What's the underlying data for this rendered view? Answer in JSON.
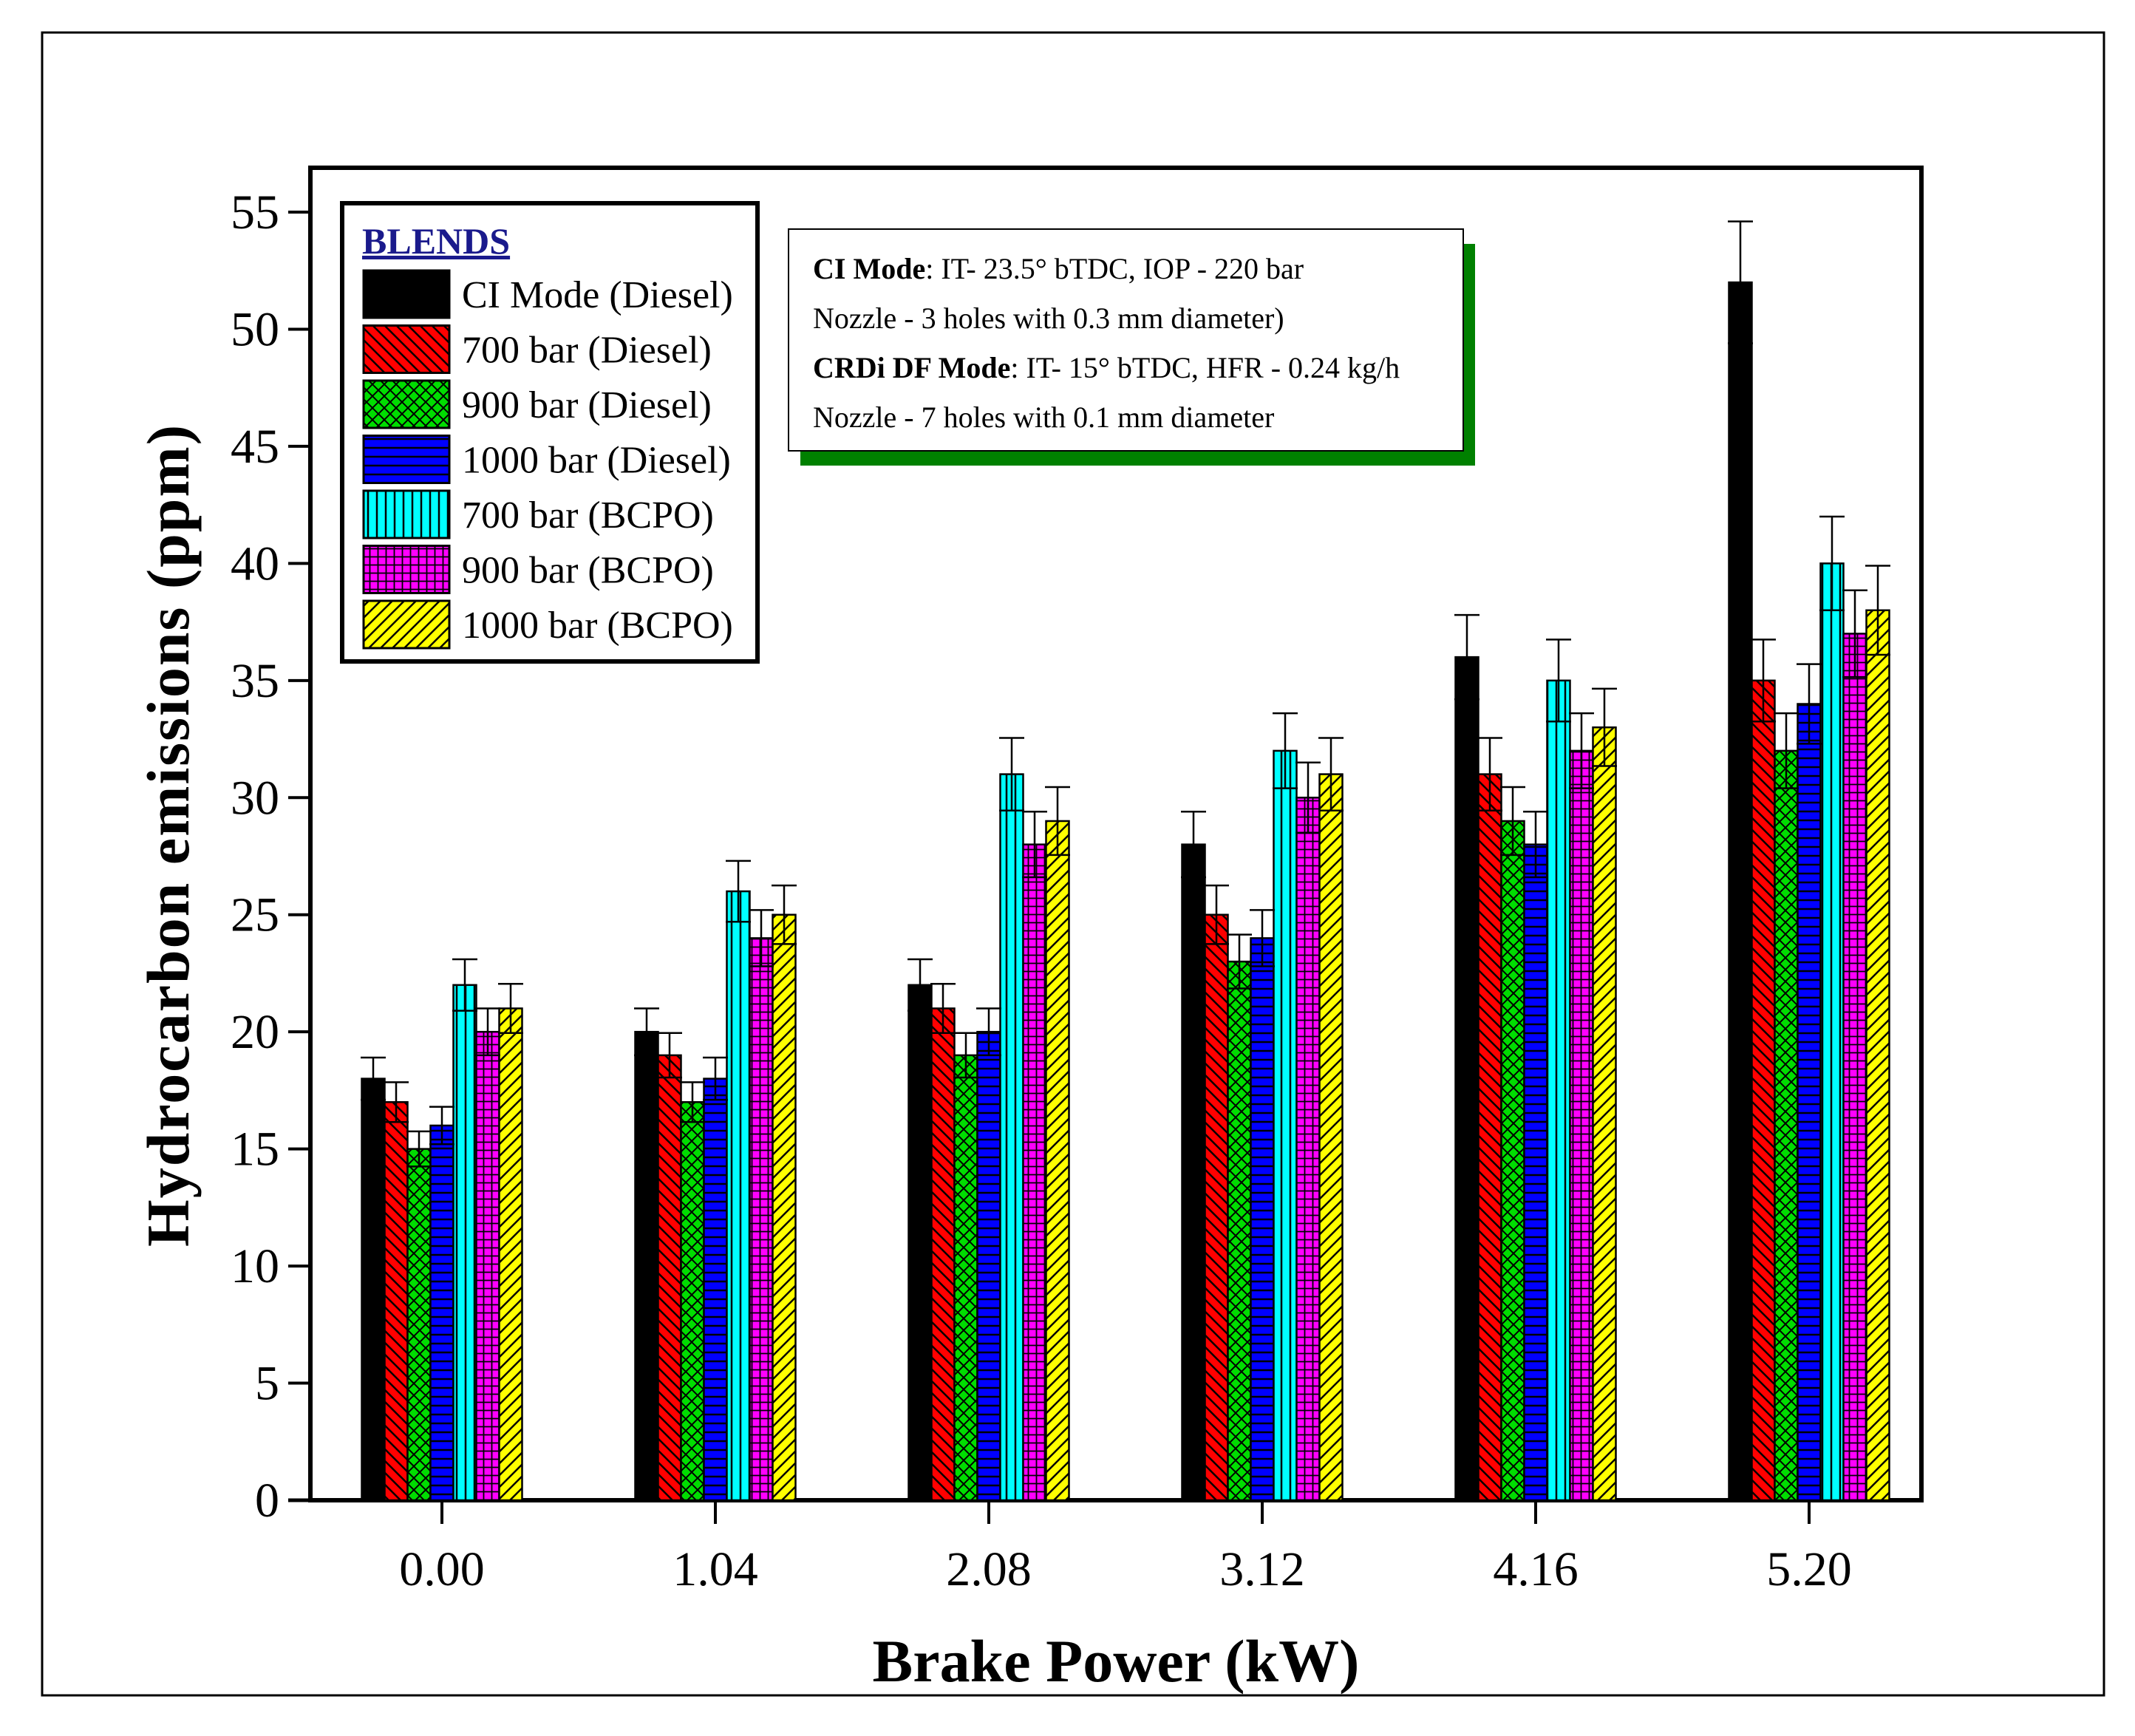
{
  "chart_data": {
    "type": "bar",
    "xlabel": "Brake Power (kW)",
    "ylabel": "Hydrocarbon emissions (ppm)",
    "categories": [
      "0.00",
      "1.04",
      "2.08",
      "3.12",
      "4.16",
      "5.20"
    ],
    "ylim": [
      0,
      55
    ],
    "yticks": [
      0,
      5,
      10,
      15,
      20,
      25,
      30,
      35,
      40,
      45,
      50,
      55
    ],
    "grid": false,
    "legend": {
      "title": "BLENDS",
      "placement": "top-left"
    },
    "series": [
      {
        "name": "CI Mode (Diesel)",
        "color": "#000000",
        "pattern": "solid",
        "values": [
          18,
          20,
          22,
          28,
          36,
          52
        ],
        "errors": [
          0.9,
          1.0,
          1.1,
          1.4,
          1.8,
          2.6
        ]
      },
      {
        "name": "700 bar (Diesel)",
        "color": "#ff0000",
        "pattern": "diagonal-down",
        "values": [
          17,
          19,
          21,
          25,
          31,
          35
        ],
        "errors": [
          0.85,
          0.95,
          1.05,
          1.25,
          1.55,
          1.75
        ]
      },
      {
        "name": "900 bar (Diesel)",
        "color": "#00dd00",
        "pattern": "crosshatch-diagonal",
        "values": [
          15,
          17,
          19,
          23,
          29,
          32
        ],
        "errors": [
          0.75,
          0.85,
          0.95,
          1.15,
          1.45,
          1.6
        ]
      },
      {
        "name": "1000 bar (Diesel)",
        "color": "#0000ff",
        "pattern": "horizontal",
        "values": [
          16,
          18,
          20,
          24,
          28,
          34
        ],
        "errors": [
          0.8,
          0.9,
          1.0,
          1.2,
          1.4,
          1.7
        ]
      },
      {
        "name": "700 bar (BCPO)",
        "color": "#00ffff",
        "pattern": "vertical",
        "values": [
          22,
          26,
          31,
          32,
          35,
          40
        ],
        "errors": [
          1.1,
          1.3,
          1.55,
          1.6,
          1.75,
          2.0
        ]
      },
      {
        "name": "900 bar (BCPO)",
        "color": "#ff00ff",
        "pattern": "grid",
        "values": [
          20,
          24,
          28,
          30,
          32,
          37
        ],
        "errors": [
          1.0,
          1.2,
          1.4,
          1.5,
          1.6,
          1.85
        ]
      },
      {
        "name": "1000 bar (BCPO)",
        "color": "#ffff00",
        "pattern": "diagonal-up",
        "values": [
          21,
          25,
          29,
          31,
          33,
          38
        ],
        "errors": [
          1.05,
          1.25,
          1.45,
          1.55,
          1.65,
          1.9
        ]
      }
    ],
    "annotation": {
      "lines": [
        {
          "bold": "CI Mode",
          "text": ": IT- 23.5° bTDC, IOP - 220 bar"
        },
        {
          "bold": "",
          "text": "Nozzle - 3 holes with 0.3 mm diameter)"
        },
        {
          "bold": "CRDi DF Mode",
          "text": ": IT- 15° bTDC, HFR - 0.24 kg/h"
        },
        {
          "bold": "",
          "text": "Nozzle - 7 holes with 0.1 mm diameter"
        }
      ],
      "shadow_color": "#008000"
    }
  }
}
